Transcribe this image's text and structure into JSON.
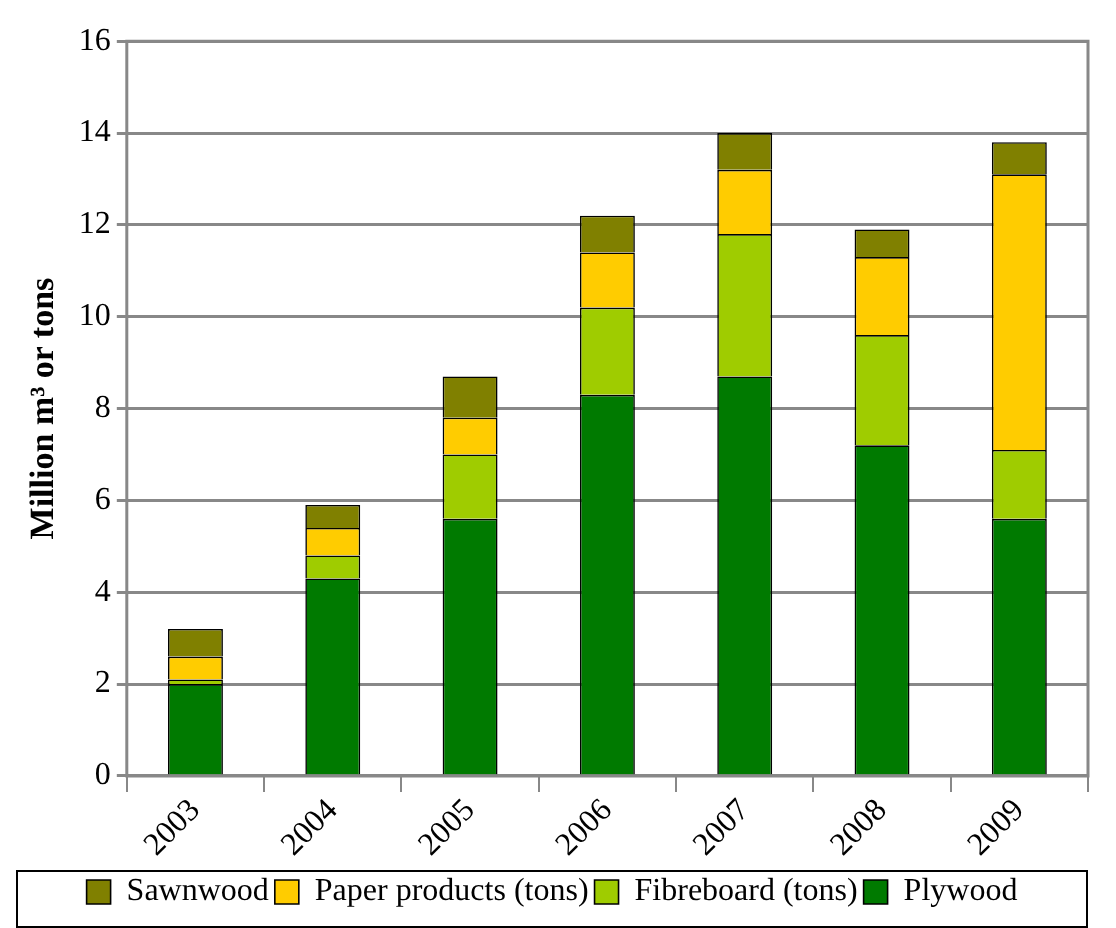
{
  "chart_data": {
    "type": "bar",
    "stacked": true,
    "ylabel": "Million m³ or tons",
    "categories": [
      "2003",
      "2004",
      "2005",
      "2006",
      "2007",
      "2008",
      "2009"
    ],
    "series": [
      {
        "name": "Plywood",
        "color": "#007a00",
        "values": [
          2.0,
          4.3,
          5.6,
          8.3,
          8.7,
          7.2,
          5.6
        ]
      },
      {
        "name": "Fibreboard (tons)",
        "color": "#9fcc00",
        "values": [
          0.1,
          0.5,
          1.4,
          1.9,
          3.1,
          2.4,
          1.5
        ]
      },
      {
        "name": "Paper products (tons)",
        "color": "#ffcc00",
        "values": [
          0.5,
          0.6,
          0.8,
          1.2,
          1.4,
          1.7,
          6.0
        ]
      },
      {
        "name": "Sawnwood",
        "color": "#808000",
        "values": [
          0.6,
          0.5,
          0.9,
          0.8,
          0.8,
          0.6,
          0.7
        ]
      }
    ],
    "ylim": [
      0,
      16
    ],
    "yticks": [
      0,
      2,
      4,
      6,
      8,
      10,
      12,
      14,
      16
    ],
    "grid": "y",
    "legend": "bottom"
  }
}
